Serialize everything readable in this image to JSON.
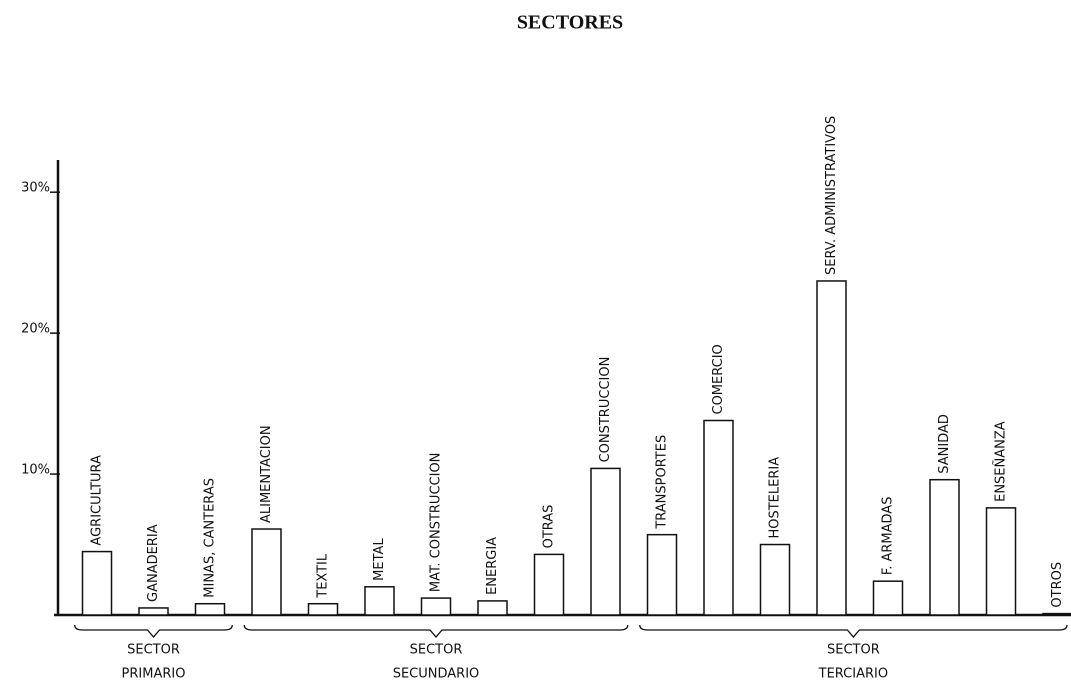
{
  "chart_data": {
    "type": "bar",
    "title": "SECTORES",
    "categories": [
      "AGRICULTURA",
      "GANADERIA",
      "MINAS, CANTERAS",
      "ALIMENTACION",
      "TEXTIL",
      "METAL",
      "MAT. CONSTRUCCION",
      "ENERGIA",
      "OTRAS",
      "CONSTRUCCION",
      "TRANSPORTES",
      "COMERCIO",
      "HOSTELERIA",
      "SERV. ADMINISTRATIVOS",
      "F. ARMADAS",
      "SANIDAD",
      "ENSEÑANZA",
      "OTROS"
    ],
    "values": [
      4.5,
      0.5,
      0.8,
      6.1,
      0.8,
      2.0,
      1.2,
      1.0,
      4.3,
      10.4,
      5.7,
      13.8,
      5.0,
      23.7,
      2.4,
      9.6,
      7.6,
      0.1
    ],
    "color": "#ffffff",
    "ylim": [
      0,
      32
    ],
    "yticks": [
      {
        "value": 10,
        "label": "10%"
      },
      {
        "value": 20,
        "label": "20%"
      },
      {
        "value": 30,
        "label": "30%"
      }
    ],
    "groups": [
      {
        "label": [
          "SECTOR",
          "PRIMARIO"
        ],
        "start": 0,
        "end": 2
      },
      {
        "label": [
          "SECTOR",
          "SECUNDARIO"
        ],
        "start": 3,
        "end": 9
      },
      {
        "label": [
          "SECTOR",
          "TERCIARIO"
        ],
        "start": 10,
        "end": 17
      }
    ]
  }
}
